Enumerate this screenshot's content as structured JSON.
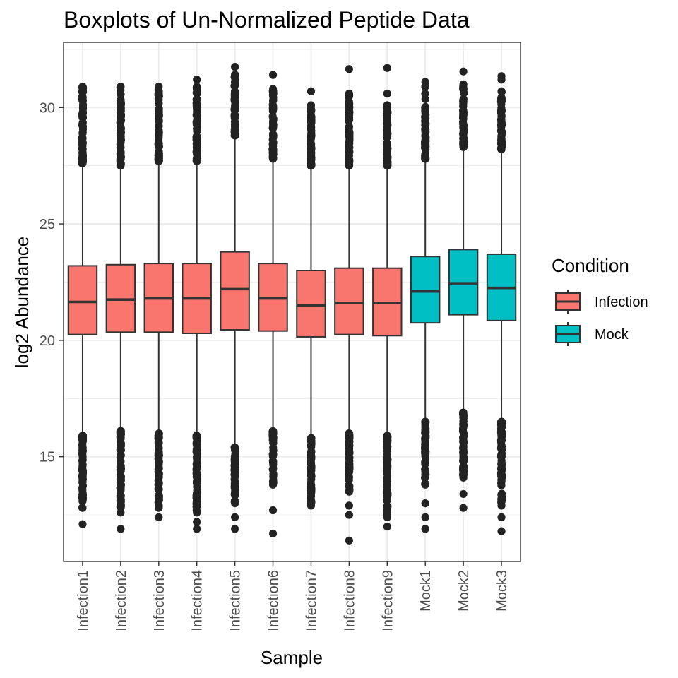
{
  "chart_data": {
    "type": "boxplot",
    "title": "Boxplots of Un-Normalized Peptide Data",
    "xlabel": "Sample",
    "ylabel": "log2 Abundance",
    "ylim": [
      10.5,
      32.8
    ],
    "y_ticks": [
      "15",
      "20",
      "25",
      "30"
    ],
    "grid": true,
    "legend": {
      "title": "Condition",
      "position": "right",
      "entries": [
        {
          "label": "Infection",
          "color": "#F8766D"
        },
        {
          "label": "Mock",
          "color": "#00BFC4"
        }
      ]
    },
    "colors": {
      "Infection": "#F8766D",
      "Mock": "#00BFC4"
    },
    "boxes": [
      {
        "sample": "Infection1",
        "condition": "Infection",
        "q1": 20.25,
        "median": 21.65,
        "q3": 23.2,
        "whisker_low": 15.9,
        "whisker_high": 27.6,
        "outlier_low_range": [
          12.8,
          15.9
        ],
        "outlier_high_range": [
          27.6,
          30.9
        ],
        "outlier_low_extreme": [
          12.1
        ],
        "outlier_high_extreme": []
      },
      {
        "sample": "Infection2",
        "condition": "Infection",
        "q1": 20.35,
        "median": 21.75,
        "q3": 23.25,
        "whisker_low": 16.1,
        "whisker_high": 27.5,
        "outlier_low_range": [
          12.6,
          16.1
        ],
        "outlier_high_range": [
          27.5,
          30.9
        ],
        "outlier_low_extreme": [
          11.9
        ],
        "outlier_high_extreme": []
      },
      {
        "sample": "Infection3",
        "condition": "Infection",
        "q1": 20.35,
        "median": 21.8,
        "q3": 23.3,
        "whisker_low": 16.0,
        "whisker_high": 27.7,
        "outlier_low_range": [
          12.8,
          16.0
        ],
        "outlier_high_range": [
          27.7,
          30.9
        ],
        "outlier_low_extreme": [
          12.4
        ],
        "outlier_high_extreme": []
      },
      {
        "sample": "Infection4",
        "condition": "Infection",
        "q1": 20.3,
        "median": 21.8,
        "q3": 23.3,
        "whisker_low": 15.9,
        "whisker_high": 27.7,
        "outlier_low_range": [
          12.6,
          15.9
        ],
        "outlier_high_range": [
          27.7,
          30.9
        ],
        "outlier_low_extreme": [
          11.9,
          12.2
        ],
        "outlier_high_extreme": [
          31.2
        ]
      },
      {
        "sample": "Infection5",
        "condition": "Infection",
        "q1": 20.45,
        "median": 22.2,
        "q3": 23.8,
        "whisker_low": 15.4,
        "whisker_high": 28.8,
        "outlier_low_range": [
          13.0,
          15.4
        ],
        "outlier_high_range": [
          28.8,
          31.4
        ],
        "outlier_low_extreme": [
          11.9,
          12.4
        ],
        "outlier_high_extreme": [
          31.75
        ]
      },
      {
        "sample": "Infection6",
        "condition": "Infection",
        "q1": 20.4,
        "median": 21.8,
        "q3": 23.3,
        "whisker_low": 16.1,
        "whisker_high": 27.8,
        "outlier_low_range": [
          13.8,
          16.1
        ],
        "outlier_high_range": [
          27.8,
          30.8
        ],
        "outlier_low_extreme": [
          11.7,
          12.7
        ],
        "outlier_high_extreme": [
          31.4
        ]
      },
      {
        "sample": "Infection7",
        "condition": "Infection",
        "q1": 20.15,
        "median": 21.5,
        "q3": 23.0,
        "whisker_low": 15.8,
        "whisker_high": 27.5,
        "outlier_low_range": [
          13.0,
          15.8
        ],
        "outlier_high_range": [
          27.5,
          30.1
        ],
        "outlier_low_extreme": [
          12.9
        ],
        "outlier_high_extreme": [
          30.7
        ]
      },
      {
        "sample": "Infection8",
        "condition": "Infection",
        "q1": 20.25,
        "median": 21.6,
        "q3": 23.1,
        "whisker_low": 16.0,
        "whisker_high": 27.5,
        "outlier_low_range": [
          13.5,
          16.0
        ],
        "outlier_high_range": [
          27.5,
          30.6
        ],
        "outlier_low_extreme": [
          11.4,
          12.5,
          12.9
        ],
        "outlier_high_extreme": [
          31.65
        ]
      },
      {
        "sample": "Infection9",
        "condition": "Infection",
        "q1": 20.2,
        "median": 21.6,
        "q3": 23.1,
        "whisker_low": 15.9,
        "whisker_high": 27.5,
        "outlier_low_range": [
          12.4,
          15.9
        ],
        "outlier_high_range": [
          27.5,
          30.1
        ],
        "outlier_low_extreme": [
          12.0
        ],
        "outlier_high_extreme": [
          30.6,
          31.7
        ]
      },
      {
        "sample": "Mock1",
        "condition": "Mock",
        "q1": 20.75,
        "median": 22.1,
        "q3": 23.6,
        "whisker_low": 16.5,
        "whisker_high": 27.8,
        "outlier_low_range": [
          13.8,
          16.5
        ],
        "outlier_high_range": [
          27.8,
          30.9
        ],
        "outlier_low_extreme": [
          11.9,
          12.4,
          13.0
        ],
        "outlier_high_extreme": [
          31.1
        ]
      },
      {
        "sample": "Mock2",
        "condition": "Mock",
        "q1": 21.1,
        "median": 22.45,
        "q3": 23.9,
        "whisker_low": 16.9,
        "whisker_high": 28.3,
        "outlier_low_range": [
          14.1,
          16.9
        ],
        "outlier_high_range": [
          28.3,
          31.0
        ],
        "outlier_low_extreme": [
          12.8,
          13.4
        ],
        "outlier_high_extreme": [
          31.55
        ]
      },
      {
        "sample": "Mock3",
        "condition": "Mock",
        "q1": 20.85,
        "median": 22.25,
        "q3": 23.7,
        "whisker_low": 16.5,
        "whisker_high": 28.2,
        "outlier_low_range": [
          12.9,
          16.5
        ],
        "outlier_high_range": [
          28.2,
          30.7
        ],
        "outlier_low_extreme": [
          11.8,
          12.4
        ],
        "outlier_high_extreme": [
          31.2,
          31.35
        ]
      }
    ]
  }
}
